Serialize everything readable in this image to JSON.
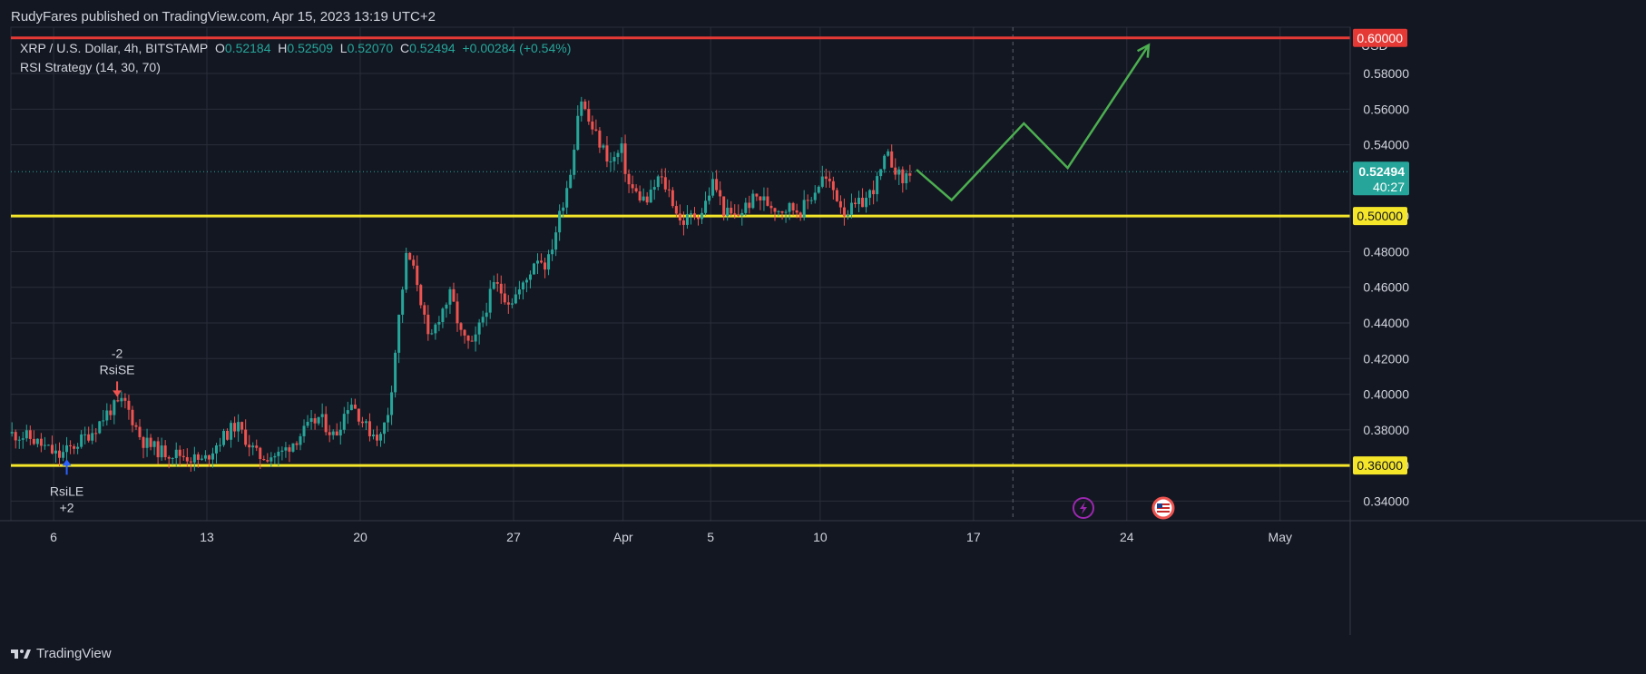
{
  "header": {
    "publisher_line": "RudyFares published on TradingView.com, Apr 15, 2023 13:19 UTC+2"
  },
  "legend": {
    "symbol": "XRP / U.S. Dollar, 4h, BITSTAMP",
    "o_label": "O",
    "o_value": "0.52184",
    "h_label": "H",
    "h_value": "0.52509",
    "l_label": "L",
    "l_value": "0.52070",
    "c_label": "C",
    "c_value": "0.52494",
    "change": "+0.00284 (+0.54%)",
    "indicator": "RSI Strategy (14, 30, 70)"
  },
  "footer": {
    "brand": "TradingView"
  },
  "colors": {
    "background": "#131722",
    "grid": "#2a2e39",
    "up": "#26a69a",
    "down": "#ef5350",
    "support": "#f5e62a",
    "resistance": "#e53935",
    "projection": "#4caf50",
    "long_signal": "#2962ff",
    "short_signal": "#ef5350"
  },
  "chart_data": {
    "type": "candlestick",
    "symbol": "XRP / U.S. Dollar",
    "timeframe": "4h",
    "exchange": "BITSTAMP",
    "currency_label": "USD",
    "y_ticks": [
      "0.34000",
      "0.36000",
      "0.38000",
      "0.40000",
      "0.42000",
      "0.44000",
      "0.46000",
      "0.48000",
      "0.50000",
      "0.54000",
      "0.56000",
      "0.58000"
    ],
    "ylim": [
      0.329,
      0.606
    ],
    "x_ticks": [
      {
        "label": "6",
        "day": 6
      },
      {
        "label": "13",
        "day": 13
      },
      {
        "label": "20",
        "day": 20
      },
      {
        "label": "27",
        "day": 27
      },
      {
        "label": "Apr",
        "day": 32
      },
      {
        "label": "5",
        "day": 36
      },
      {
        "label": "10",
        "day": 41
      },
      {
        "label": "17",
        "day": 48
      },
      {
        "label": "24",
        "day": 55
      },
      {
        "label": "May",
        "day": 62
      }
    ],
    "x_range_days": [
      4.05,
      65.2
    ],
    "price_path": [
      {
        "day": 4.1,
        "price": 0.378
      },
      {
        "day": 5.0,
        "price": 0.376
      },
      {
        "day": 5.8,
        "price": 0.37
      },
      {
        "day": 6.4,
        "price": 0.365
      },
      {
        "day": 7.2,
        "price": 0.372
      },
      {
        "day": 8.0,
        "price": 0.38
      },
      {
        "day": 8.7,
        "price": 0.391
      },
      {
        "day": 9.4,
        "price": 0.396
      },
      {
        "day": 10.2,
        "price": 0.374
      },
      {
        "day": 11.0,
        "price": 0.368
      },
      {
        "day": 12.0,
        "price": 0.366
      },
      {
        "day": 13.0,
        "price": 0.362
      },
      {
        "day": 13.6,
        "price": 0.372
      },
      {
        "day": 14.5,
        "price": 0.383
      },
      {
        "day": 15.5,
        "price": 0.365
      },
      {
        "day": 16.5,
        "price": 0.366
      },
      {
        "day": 17.5,
        "price": 0.378
      },
      {
        "day": 18.3,
        "price": 0.387
      },
      {
        "day": 19.0,
        "price": 0.376
      },
      {
        "day": 19.7,
        "price": 0.397
      },
      {
        "day": 20.5,
        "price": 0.38
      },
      {
        "day": 21.1,
        "price": 0.376
      },
      {
        "day": 21.5,
        "price": 0.393
      },
      {
        "day": 21.9,
        "price": 0.44
      },
      {
        "day": 22.3,
        "price": 0.48
      },
      {
        "day": 22.8,
        "price": 0.462
      },
      {
        "day": 23.3,
        "price": 0.428
      },
      {
        "day": 23.8,
        "price": 0.445
      },
      {
        "day": 24.3,
        "price": 0.456
      },
      {
        "day": 24.8,
        "price": 0.432
      },
      {
        "day": 25.3,
        "price": 0.426
      },
      {
        "day": 25.8,
        "price": 0.445
      },
      {
        "day": 26.3,
        "price": 0.462
      },
      {
        "day": 27.0,
        "price": 0.452
      },
      {
        "day": 27.7,
        "price": 0.462
      },
      {
        "day": 28.2,
        "price": 0.478
      },
      {
        "day": 28.7,
        "price": 0.472
      },
      {
        "day": 29.2,
        "price": 0.497
      },
      {
        "day": 29.8,
        "price": 0.527
      },
      {
        "day": 30.2,
        "price": 0.568
      },
      {
        "day": 30.6,
        "price": 0.553
      },
      {
        "day": 31.1,
        "price": 0.541
      },
      {
        "day": 31.6,
        "price": 0.53
      },
      {
        "day": 32.1,
        "price": 0.537
      },
      {
        "day": 32.4,
        "price": 0.518
      },
      {
        "day": 32.8,
        "price": 0.512
      },
      {
        "day": 33.3,
        "price": 0.508
      },
      {
        "day": 33.8,
        "price": 0.522
      },
      {
        "day": 34.3,
        "price": 0.513
      },
      {
        "day": 34.8,
        "price": 0.496
      },
      {
        "day": 35.3,
        "price": 0.5
      },
      {
        "day": 35.8,
        "price": 0.503
      },
      {
        "day": 36.3,
        "price": 0.52
      },
      {
        "day": 36.8,
        "price": 0.502
      },
      {
        "day": 37.3,
        "price": 0.499
      },
      {
        "day": 37.8,
        "price": 0.506
      },
      {
        "day": 38.3,
        "price": 0.511
      },
      {
        "day": 38.8,
        "price": 0.507
      },
      {
        "day": 39.3,
        "price": 0.504
      },
      {
        "day": 39.8,
        "price": 0.505
      },
      {
        "day": 40.3,
        "price": 0.503
      },
      {
        "day": 40.8,
        "price": 0.512
      },
      {
        "day": 41.3,
        "price": 0.522
      },
      {
        "day": 41.8,
        "price": 0.514
      },
      {
        "day": 42.3,
        "price": 0.502
      },
      {
        "day": 42.8,
        "price": 0.505
      },
      {
        "day": 43.3,
        "price": 0.51
      },
      {
        "day": 43.8,
        "price": 0.52
      },
      {
        "day": 44.2,
        "price": 0.534
      },
      {
        "day": 44.6,
        "price": 0.527
      },
      {
        "day": 44.9,
        "price": 0.519
      },
      {
        "day": 45.2,
        "price": 0.525
      }
    ],
    "last_price": {
      "label": "0.52494",
      "value": 0.52494,
      "countdown": "40:27"
    },
    "levels": [
      {
        "name": "resistance",
        "value": 0.6,
        "label": "0.60000"
      },
      {
        "name": "support-upper",
        "value": 0.5,
        "label": "0.50000"
      },
      {
        "name": "support-lower",
        "value": 0.36,
        "label": "0.36000"
      }
    ],
    "projection_path": [
      {
        "day": 45.4,
        "price": 0.526
      },
      {
        "day": 47.0,
        "price": 0.509
      },
      {
        "day": 50.3,
        "price": 0.552
      },
      {
        "day": 52.3,
        "price": 0.527
      },
      {
        "day": 56.0,
        "price": 0.596
      }
    ],
    "signals": [
      {
        "name": "long-entry",
        "label": "RsiLE",
        "qty": "+2",
        "day": 6.6,
        "price": 0.366
      },
      {
        "name": "short-entry",
        "label": "RsiSE",
        "qty": "-2",
        "day": 8.9,
        "price": 0.396
      }
    ],
    "now_day": 49.8
  }
}
